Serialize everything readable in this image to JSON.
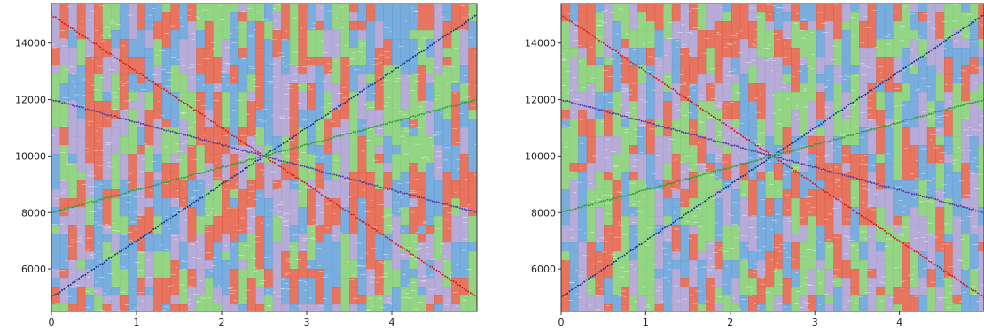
{
  "chart_data": [
    {
      "type": "scatter",
      "title": "",
      "xlabel": "",
      "ylabel": "",
      "xlim": [
        0,
        5
      ],
      "ylim": [
        4500,
        15400
      ],
      "xticks": [
        0,
        1,
        2,
        3,
        4
      ],
      "yticks": [
        6000,
        8000,
        10000,
        12000,
        14000
      ],
      "xtick_labels": [
        "0",
        "1",
        "2",
        "3",
        "4"
      ],
      "ytick_labels": [
        "6000",
        "8000",
        "10000",
        "12000",
        "14000"
      ],
      "grid": false,
      "legend": "none",
      "background_colors": [
        "#e2553c",
        "#5b9bd5",
        "#7ccc6a",
        "#a79ad0"
      ],
      "series": [
        {
          "color": "#d7191c",
          "x": [
            0,
            5
          ],
          "y": [
            15000,
            5000
          ]
        },
        {
          "color": "#0b3c8c",
          "x": [
            0,
            5
          ],
          "y": [
            5000,
            15000
          ]
        },
        {
          "color": "#5a3aa0",
          "x": [
            0,
            5
          ],
          "y": [
            12000,
            8000
          ]
        },
        {
          "color": "#2e9e3a",
          "x": [
            0,
            5
          ],
          "y": [
            8000,
            12000
          ]
        }
      ]
    },
    {
      "type": "scatter",
      "title": "",
      "xlabel": "",
      "ylabel": "",
      "xlim": [
        0,
        5
      ],
      "ylim": [
        4500,
        15400
      ],
      "xticks": [
        0,
        1,
        2,
        3,
        4
      ],
      "yticks": [
        6000,
        8000,
        10000,
        12000,
        14000
      ],
      "xtick_labels": [
        "0",
        "1",
        "2",
        "3",
        "4"
      ],
      "ytick_labels": [
        "6000",
        "8000",
        "10000",
        "12000",
        "14000"
      ],
      "grid": false,
      "legend": "none",
      "background_colors": [
        "#e2553c",
        "#5b9bd5",
        "#7ccc6a",
        "#a79ad0"
      ],
      "series": [
        {
          "color": "#d7191c",
          "x": [
            0,
            5
          ],
          "y": [
            15000,
            5000
          ]
        },
        {
          "color": "#0b3c8c",
          "x": [
            0,
            5
          ],
          "y": [
            5000,
            15000
          ]
        },
        {
          "color": "#5a3aa0",
          "x": [
            0,
            5
          ],
          "y": [
            12000,
            8000
          ]
        },
        {
          "color": "#2e9e3a",
          "x": [
            0,
            5
          ],
          "y": [
            8000,
            12000
          ]
        }
      ]
    }
  ]
}
